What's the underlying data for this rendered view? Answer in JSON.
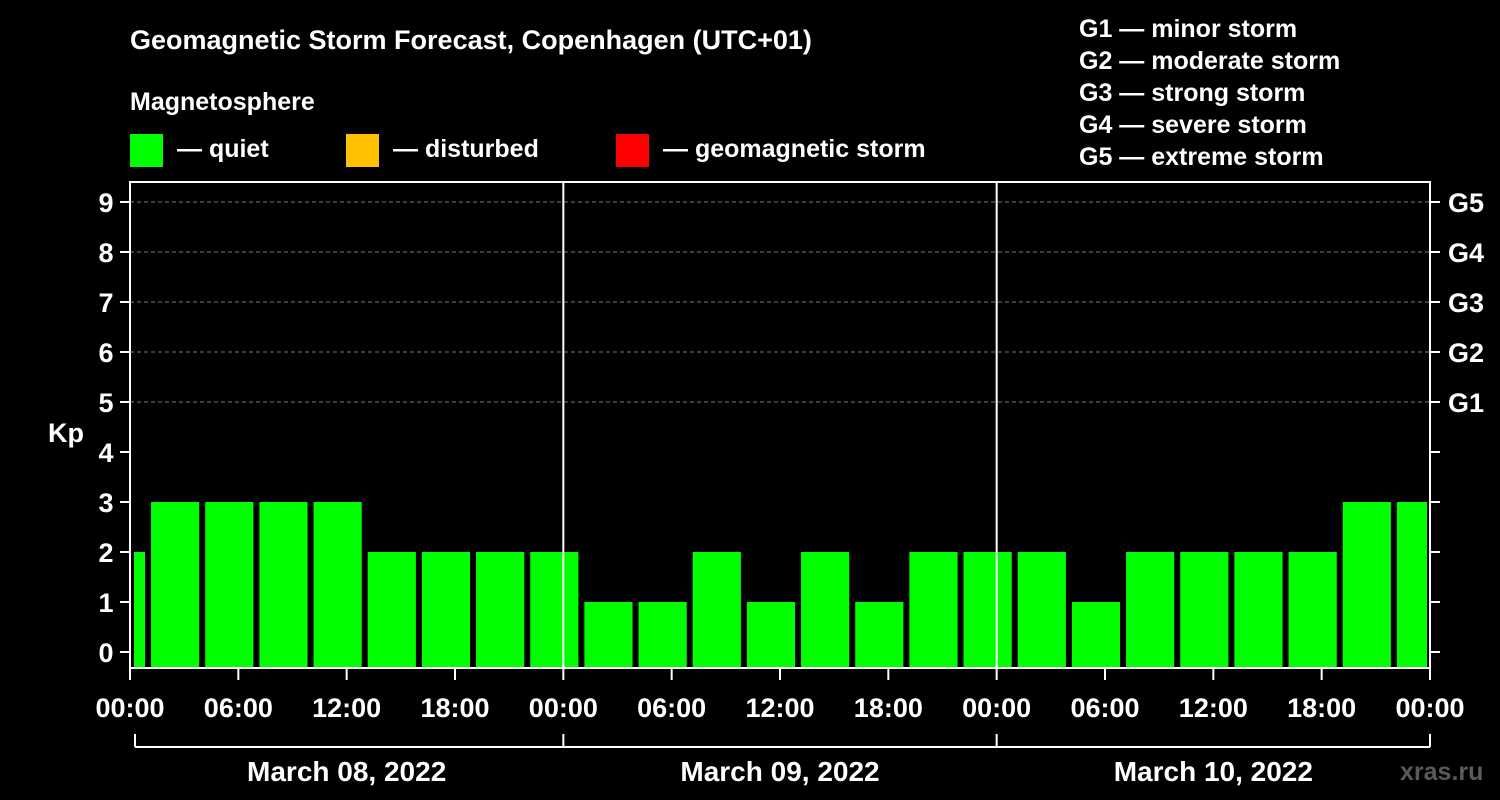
{
  "chart_data": {
    "type": "bar",
    "title": "Geomagnetic Storm Forecast, Copenhagen (UTC+01)",
    "ylabel": "Kp",
    "ylim": [
      0,
      9
    ],
    "legend_title": "Magnetosphere",
    "legend": [
      {
        "label": "— quiet",
        "color": "#00ff00"
      },
      {
        "label": "— disturbed",
        "color": "#ffc000"
      },
      {
        "label": "— geomagnetic storm",
        "color": "#ff0000"
      }
    ],
    "g_scale": [
      "G1 — minor storm",
      "G2 — moderate storm",
      "G3 — strong storm",
      "G4 — severe storm",
      "G5 — extreme storm"
    ],
    "right_ticks": [
      {
        "kp": 5,
        "label": "G1"
      },
      {
        "kp": 6,
        "label": "G2"
      },
      {
        "kp": 7,
        "label": "G3"
      },
      {
        "kp": 8,
        "label": "G4"
      },
      {
        "kp": 9,
        "label": "G5"
      }
    ],
    "y_ticks": [
      0,
      1,
      2,
      3,
      4,
      5,
      6,
      7,
      8,
      9
    ],
    "x_tick_labels": [
      "00:00",
      "06:00",
      "12:00",
      "18:00",
      "00:00",
      "06:00",
      "12:00",
      "18:00",
      "00:00",
      "06:00",
      "12:00",
      "18:00",
      "00:00"
    ],
    "x_tick_hours": [
      0,
      6,
      12,
      18,
      24,
      30,
      36,
      42,
      48,
      54,
      60,
      66,
      72
    ],
    "x_range_hours": [
      0,
      72
    ],
    "days": [
      "March 08, 2022",
      "March 09, 2022",
      "March 10, 2022"
    ],
    "bar_interval_hours": 3,
    "bar_start_hours": [
      -2,
      1,
      4,
      7,
      10,
      13,
      16,
      19,
      22,
      25,
      28,
      31,
      34,
      37,
      40,
      43,
      46,
      49,
      52,
      55,
      58,
      61,
      64,
      67,
      70
    ],
    "values": [
      2,
      3,
      3,
      3,
      3,
      2,
      2,
      2,
      2,
      1,
      1,
      2,
      1,
      2,
      1,
      2,
      2,
      2,
      1,
      2,
      2,
      2,
      2,
      3,
      3
    ],
    "bar_color": "#00ff00",
    "grid": true,
    "watermark": "xras.ru"
  }
}
